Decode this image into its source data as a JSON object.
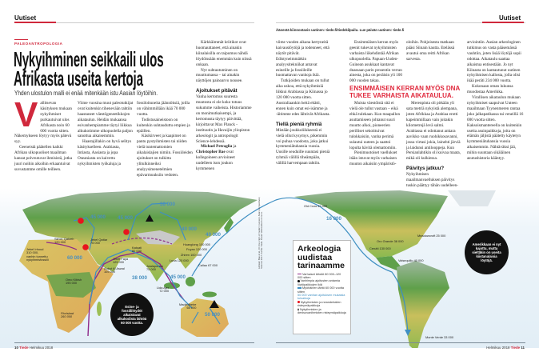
{
  "header": {
    "section_left": "Uutiset",
    "section_right": "Uutiset",
    "note": "Äänestä kiinnostavin uutinen: tiede.fi/tiedekilpailu. Lue päivän uutinen: tiede.fi"
  },
  "article": {
    "kicker": "PALEOANTROPOLOGIA",
    "title_line1": "Nykyihminen seikkaili ulos",
    "title_line2": "Afrikasta useita kertoja",
    "subtitle": "Yhden ulostulon malli ei enää mitenkään istu Aasian löytöihin.",
    "dropcap": "V",
    "col1": [
      "allitsevan käsityksen mukaan nykyihmiset purkautuivat ulos Afrikasta noin 60 000 vuotta sitten. Näkemykseen löytyy myös pätevä syy.",
      "Geeneistä päätellen kaikki Afrikan ulkopuoliset maailman kansat polveutuvat ihmisistä, jotka juuri noihin aikoihin erkaantuivat suvustamme omille teilleen."
    ],
    "col2": [
      "Viime vuosina muut paleotutkijat ovat kuitenkin tihenevään tahtiin haastaneet väestögeneetikkojen aikataulun. Heidän mukaansa esivanhempiamme täytyi liikkua alkukotimme ulkopuolella paljon sanottua aikaisemmin.",
      "Haastajillakin on hyvä selitys käsitykselleen. Arabiasta, Intiasta, Aasiasta ja jopa Oseaniasta on kaivettu nykyihmisten työkaluja ja"
    ],
    "col3": [
      "fossiloituneita jäännöksiä, joilla on vähimmillään ikää 70 000 vuotta.",
      "Todistusaineistoon on kuitenkin suhtauduttu empien ja epäillen.",
      "Käsikirveet ja kaapimet on pantu pystyihmisten tai niiden vielä tuntemattomien aikalaislajien nimiin. Fossiileiden ajoitukset on tulkittu ylitulkinneiksi analyysimenetelmien epävarmuuksiin vedoten."
    ],
    "col4": [
      "Kärkkäimmät kriitikot ovat huomauttaneet, että ainakin kiinalaisilla on taipumus nähdä löydöissään enemmän kuin niissä onkaan.",
      "Nyt suhtautuminen on muuttumassa – tai ainakin näyttöjen painoarvo nousee."
    ],
    "heading1": "Ajoitukset pitävät",
    "col4b": "Vanha kertomus suuresta muutosta ei ole koko totuus sukumme vaiheista. Historiamme on monimutkaisempi, ja kertomusta täytyy päivittää, kirjoittavat Max Planck -instituutin ja Havaijin yliopiston arkeologit ja antropologit Science-lehdessä.",
    "col4c_name1": "Michael Petraglia",
    "col4c_and": " ja ",
    "col4c_name2": "Christopher Bae",
    "col4c_rest": " ovat kollegoineen arvioineet uudelleen ison joukon kymmenen",
    "col5": [
      "viime vuoden aikana kertyneitä kaivauslöytöjä ja todenneet, että näytöt pitävät. Edistyneimmätkin analyysitekniikat antavat esineille ja fossiileille huomattavan vanhoja ikiä.",
      "Tutkijoiden mukaan on tullut aika uskoa, että nykyihmisiä liikkui Arabiassa ja Kiinassa jo 120 000 vuotta sitten. Australiaankin heitä ehätti, ennen kuin omat esi-isämme ja -äitimme edes lähtivät Afrikasta."
    ],
    "heading2": "Tiellä pieniä ryhmiä",
    "col5b": "Mistään joukkoliikkeestä ei vielä ollut kysymys, pikemmin voi puhua vuodosta, joka jatkui kymmeniätuhansia vuosia. Uusille seuduille suuntasi pieniä ryhmiä välillä tiheämpään, välillä harvempaan tahtiin.",
    "col6a": "Ensimmäisen kerran myös geenit tukevat nykyihmisten varhaista liikehdintää Afrikan ulkopuolella. Papuan-Uuden-Guinean asukkaat kantavat dnassaan parin prosentin verran ainesta, joka on peräisin yli 100 000 vuoden takaa.",
    "col6b": "Muista väestöistä sitä ei vielä ole tullut vastaan – eikä ehkä tulekaan. Kun maapallon asuttamiseen johtanut suuri muutto alkoi, pioneerien perilliset sekoittuivat tulokkaisiin, vanha perimä sulautui uuteen ja saattoi lopulta hävitä olemattomiin.",
    "col6c": "Pienimuotoiset vaellukset itään istuvat myös varhaisen muuton aikaisiin ympäristö-",
    "col7a": "oloihin. Pohjoisesta matkaan pääsi Siinain kautta. Etelässä avautui oma reitti Afrikan sarvesta.",
    "col7b": "Merenpinta oli pitkään yli sata metriä nykyistä alempana, joten Afrikkaa ja Arabiaa erotti kapeimmillaan vain joitakin kilometrejä levä salmi. Arabiassa ei odottanut ankara aavikko vaan ruohikkosavanni, jossa virtasi jokia, lainehti järviä ja laidunsi antilooppeja. Kun Persianlahtikin oli kuivaa maata, mikä oli kulkiessa.",
    "heading3": "Päivitys jatkuu?",
    "col7c": "Nykyihmisen maailmanvaelluksen päivitys tuskin päättyy tähän uudelleen-",
    "col8": [
      "arviointiin. Aasian arkeologinen tutkimus on vasta pääsemässä vauhtiin, joten lisää löytöjä sopii odottaa. Aikataulu saattaa aikaistua entisestään. Jo nyt Kiinasta on kantautunut uutinen nykyihmisen kallosta, jolla olisi ikää peräti 234 000 vuotta.",
      "Kokonaan oman lukunsa muodostaa Amerikka.",
      "Virallisen aikataulun mukaan nykyihmiset saapuivat Uuteen maailmaan Tyynenmeren rantaa joko jalkapatikassa tai veneillä 16 000 vuotta sitten. Kaksoismantereella on kuitenkin useita asuinpaikkoja, joita on elämän jäljistä päätelty käytetyn kymmeniätuhansia vuosia aikaisemmin. Nähtäväksi jää, mihin suuntaan sikäläinen asutushistoria kääntyy."
    ],
    "pull_quote": "ENSIMMÄISEN KERRAN MYÖS DNA TUKEE VARHAISTA AIKATAULUA."
  },
  "map": {
    "colors": {
      "early_route": "#8e2a8a",
      "late_route": "#3f8fc2",
      "neanderthal_mixing": "#e8141e",
      "land_green": "#5fa04a",
      "land_yellow": "#d8c463",
      "sea": "#e9f2f8"
    },
    "sites": [
      "Jebel Irhoud\n310 000,\nvanhin tunnettu\nnykyihmisfossiili",
      "Skhul, Qafzeh\n120 000",
      "Jebel Qattar\n75 000",
      "Jebel Faya\n125 000",
      "Aubut Al Aswal\n105 000",
      "Omo Kibish\n195 000",
      "Florisbad\n260 000",
      "Katoati\n80 000",
      "Jwalapuram\n75 000",
      "Huanglong 100 000",
      "Fuyan 120 000",
      "Zhiren 100 000",
      "Luna 120 000",
      "Callao 67 000",
      "Lida Ajer\n72 000",
      "Madjedbebe\n65 000",
      "Old Crow 40 000",
      "Oro Grande 38 000",
      "Cerutti 130 000",
      "Meadowcroft 25 000",
      "Valsequillo 40 000",
      "Monte Verde 33 000"
    ],
    "route_labels": [
      "45 000",
      "45 000",
      "60 000",
      "38 000",
      "38 000",
      "40 000",
      "40 000",
      "45 000",
      "50 000",
      "16 000"
    ],
    "legend": {
      "title": "Arkeologia uudistaa tarinaamme",
      "items": [
        {
          "icon": "purple-line",
          "text": "Varhaiset lähdöt 80 000–120 000 sitten"
        },
        {
          "icon": "black-dot",
          "text": "Vanhimpia ajoitusten antamia löytöpaikkojen ikiä"
        },
        {
          "icon": "blue-line",
          "text": "Myöhäinen lähtö 60 000 vuotta sitten"
        },
        {
          "icon": "blue-number",
          "text": "50 000 vanhan ajoituksen mukaisia tuloaikoja"
        },
        {
          "icon": "red-dot",
          "text": "Nykyihmisten ja neandertalien risteymäpaikkoja"
        },
        {
          "icon": "black-triangle",
          "text": "Nykyihmisten ja denisovanihmisten risteymäpaikkoja"
        }
      ]
    },
    "circle_left": "Esine- ja fossiililöydöt aikaistavat alkukodista lähtöä 60 000 vuotta.",
    "circle_right": "Amerikkaan ei nyt kajottu, mutta sieltäkin on useita kiistanalaisia löytöjä.",
    "credit": "Lähteet: Bae et al., On the origin of modern humans: Asian perspectives; Science 2017. Kartta: Tiede. Kuvat: Wikimedia Commons."
  },
  "footer": {
    "left_page": "10",
    "left_mag": "Tiede",
    "left_issue": "Helmikuu 2018",
    "right_issue": "Helmikuu 2018",
    "right_mag": "Tiede",
    "right_page": "11"
  }
}
